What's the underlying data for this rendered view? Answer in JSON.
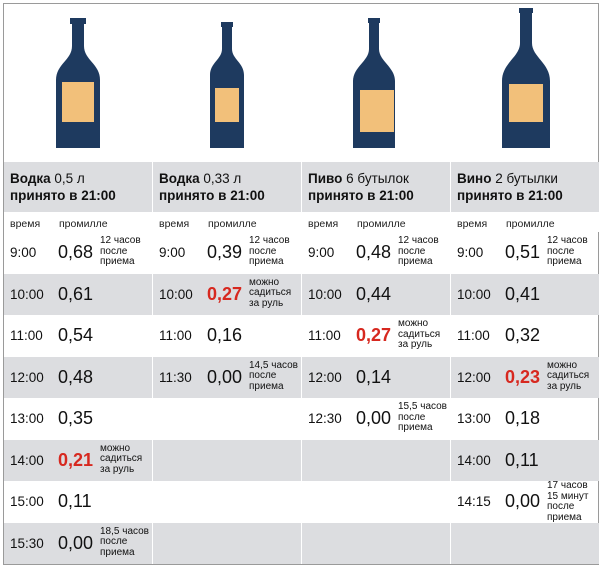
{
  "columns": [
    {
      "title_drink": "Водка",
      "title_amount": " 0,5 л",
      "title_line2": "принято в 21:00",
      "col_time": "время",
      "col_promille": "промилле",
      "rows": [
        {
          "time": "9:00",
          "value": "0,68",
          "note": "12 часов после приема",
          "red": false
        },
        {
          "time": "10:00",
          "value": "0,61",
          "note": "",
          "red": false
        },
        {
          "time": "11:00",
          "value": "0,54",
          "note": "",
          "red": false
        },
        {
          "time": "12:00",
          "value": "0,48",
          "note": "",
          "red": false
        },
        {
          "time": "13:00",
          "value": "0,35",
          "note": "",
          "red": false
        },
        {
          "time": "14:00",
          "value": "0,21",
          "note": "можно садиться за руль",
          "red": true
        },
        {
          "time": "15:00",
          "value": "0,11",
          "note": "",
          "red": false
        },
        {
          "time": "15:30",
          "value": "0,00",
          "note": "18,5 часов после приема",
          "red": false
        }
      ]
    },
    {
      "title_drink": "Водка",
      "title_amount": " 0,33 л",
      "title_line2": "принято в 21:00",
      "col_time": "время",
      "col_promille": "промилле",
      "rows": [
        {
          "time": "9:00",
          "value": "0,39",
          "note": "12 часов после приема",
          "red": false
        },
        {
          "time": "10:00",
          "value": "0,27",
          "note": "можно садиться за руль",
          "red": true
        },
        {
          "time": "11:00",
          "value": "0,16",
          "note": "",
          "red": false
        },
        {
          "time": "11:30",
          "value": "0,00",
          "note": "14,5 часов после приема",
          "red": false
        }
      ]
    },
    {
      "title_drink": "Пиво",
      "title_amount": " 6 бутылок",
      "title_line2": "принято в 21:00",
      "col_time": "время",
      "col_promille": "промилле",
      "rows": [
        {
          "time": "9:00",
          "value": "0,48",
          "note": "12 часов после приема",
          "red": false
        },
        {
          "time": "10:00",
          "value": "0,44",
          "note": "",
          "red": false
        },
        {
          "time": "11:00",
          "value": "0,27",
          "note": "можно садиться за руль",
          "red": true
        },
        {
          "time": "12:00",
          "value": "0,14",
          "note": "",
          "red": false
        },
        {
          "time": "12:30",
          "value": "0,00",
          "note": "15,5 часов после приема",
          "red": false
        }
      ]
    },
    {
      "title_drink": "Вино",
      "title_amount": " 2 бутылки",
      "title_line2": "принято в 21:00",
      "col_time": "время",
      "col_promille": "промилле",
      "rows": [
        {
          "time": "9:00",
          "value": "0,51",
          "note": "12 часов после приема",
          "red": false
        },
        {
          "time": "10:00",
          "value": "0,41",
          "note": "",
          "red": false
        },
        {
          "time": "11:00",
          "value": "0,32",
          "note": "",
          "red": false
        },
        {
          "time": "12:00",
          "value": "0,23",
          "note": "можно садиться за руль",
          "red": true
        },
        {
          "time": "13:00",
          "value": "0,18",
          "note": "",
          "red": false
        },
        {
          "time": "14:00",
          "value": "0,11",
          "note": "",
          "red": false
        },
        {
          "time": "14:15",
          "value": "0,00",
          "note": "17 часов 15 минут после приема",
          "red": false
        }
      ]
    }
  ],
  "colors": {
    "bottle": "#1e3a5f",
    "label": "#f2c07a",
    "shade": "#dcdde0",
    "highlight": "#d7281f"
  }
}
